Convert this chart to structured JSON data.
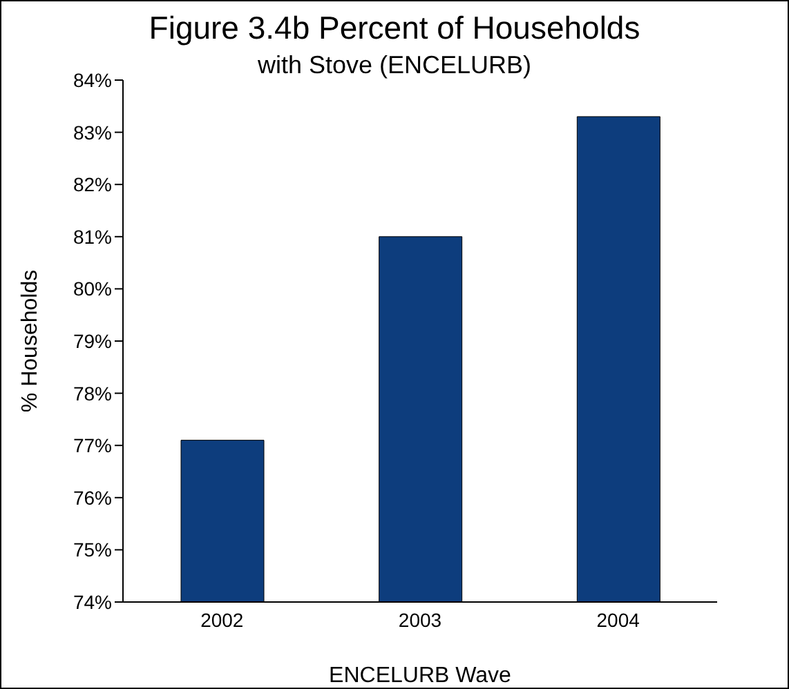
{
  "chart_data": {
    "type": "bar",
    "title": "Figure 3.4b Percent of Households",
    "subtitle": "with Stove (ENCELURB)",
    "xlabel": "ENCELURB Wave",
    "ylabel": "% Households",
    "categories": [
      "2002",
      "2003",
      "2004"
    ],
    "values": [
      77.1,
      81.0,
      83.3
    ],
    "color": "#0d3d7d",
    "ylim": [
      74,
      84
    ],
    "yticks": [
      {
        "value": 74,
        "label": "74%"
      },
      {
        "value": 75,
        "label": "75%"
      },
      {
        "value": 76,
        "label": "76%"
      },
      {
        "value": 77,
        "label": "77%"
      },
      {
        "value": 78,
        "label": "78%"
      },
      {
        "value": 79,
        "label": "79%"
      },
      {
        "value": 80,
        "label": "80%"
      },
      {
        "value": 81,
        "label": "81%"
      },
      {
        "value": 82,
        "label": "82%"
      },
      {
        "value": 83,
        "label": "83%"
      },
      {
        "value": 84,
        "label": "84%"
      }
    ],
    "grid": false,
    "legend": false
  }
}
